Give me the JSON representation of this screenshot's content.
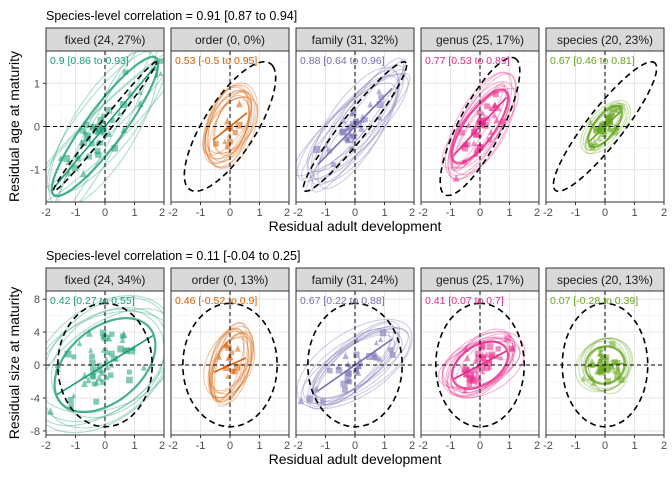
{
  "figure": {
    "x_label": "Residual adult development",
    "colors": {
      "fixed": "#1b9e77",
      "order": "#d95f02",
      "family": "#7570b3",
      "genus": "#e7298a",
      "species": "#66a61e"
    }
  },
  "chart_data": [
    {
      "type": "scatter",
      "title": "Species-level correlation = 0.91 [0.87 to 0.94]",
      "ylabel": "Residual age at maturity",
      "xlabel": "Residual adult development",
      "xlim": [
        -2,
        2
      ],
      "ylim": [
        -1.75,
        1.75
      ],
      "x_ticks": [
        -2,
        -1,
        0,
        1,
        2
      ],
      "x_tick_labels": [
        "-2",
        "-1",
        "0",
        "1",
        "2"
      ],
      "y_ticks": [
        -1,
        0,
        1
      ],
      "y_tick_labels": [
        "-1",
        "0",
        "1"
      ],
      "grid": true,
      "panels": [
        {
          "key": "fixed",
          "strip": "fixed (24, 27%)",
          "estimate": "0.9 [0.86 to 0.93]",
          "r": 0.9,
          "slope": 0.82,
          "spread_x": 0.95,
          "spread_y": 0.85,
          "outer": [
            1.75,
            1.5,
            0.99
          ],
          "ellipse_count": 6,
          "n_points": 50
        },
        {
          "key": "order",
          "strip": "order (0, 0%)",
          "estimate": "0.53 [-0.5 to 0.95]",
          "r": 0.53,
          "slope": 0.55,
          "spread_x": 0.32,
          "spread_y": 0.35,
          "outer": [
            1.55,
            1.5,
            0.75
          ],
          "ellipse_count": 12,
          "n_points": 12
        },
        {
          "key": "family",
          "strip": "family (31, 32%)",
          "estimate": "0.88 [0.64 to 0.96]",
          "r": 0.88,
          "slope": 0.7,
          "spread_x": 0.7,
          "spread_y": 0.55,
          "outer": [
            1.75,
            1.5,
            0.95
          ],
          "ellipse_count": 10,
          "n_points": 35
        },
        {
          "key": "genus",
          "strip": "genus (25, 17%)",
          "estimate": "0.77 [0.53 to 0.89]",
          "r": 0.77,
          "slope": 0.75,
          "spread_x": 0.5,
          "spread_y": 0.45,
          "outer": [
            1.35,
            1.6,
            0.8
          ],
          "ellipse_count": 10,
          "n_points": 45
        },
        {
          "key": "species",
          "strip": "species (20, 23%)",
          "estimate": "0.67 [0.46 to 0.81]",
          "r": 0.67,
          "slope": 0.65,
          "spread_x": 0.3,
          "spread_y": 0.25,
          "outer": [
            1.75,
            1.5,
            0.9
          ],
          "ellipse_count": 6,
          "n_points": 40
        }
      ]
    },
    {
      "type": "scatter",
      "title": "Species-level correlation = 0.11 [-0.04 to 0.25]",
      "ylabel": "Residual size at maturity",
      "xlabel": "Residual adult development",
      "xlim": [
        -2,
        2
      ],
      "ylim": [
        -8.5,
        9
      ],
      "x_ticks": [
        -2,
        -1,
        0,
        1,
        2
      ],
      "x_tick_labels": [
        "-2",
        "-1",
        "0",
        "1",
        "2"
      ],
      "y_ticks": [
        -8,
        -4,
        0,
        4,
        8
      ],
      "y_tick_labels": [
        "-8",
        "-4",
        "0",
        "4",
        "8"
      ],
      "grid": true,
      "panels": [
        {
          "key": "fixed",
          "strip": "fixed (24, 34%)",
          "estimate": "0.42 [0.27 to 0.55]",
          "r": 0.42,
          "slope": 2.2,
          "spread_x": 0.9,
          "spread_y": 3.0,
          "outer": [
            1.6,
            7.5,
            0.0
          ],
          "ellipse_count": 6,
          "n_points": 55
        },
        {
          "key": "order",
          "strip": "order (0, 13%)",
          "estimate": "0.46 [-0.52 to 0.9]",
          "r": 0.46,
          "slope": 1.6,
          "spread_x": 0.3,
          "spread_y": 1.8,
          "outer": [
            1.6,
            7.5,
            0.0
          ],
          "ellipse_count": 12,
          "n_points": 12
        },
        {
          "key": "family",
          "strip": "family (31, 24%)",
          "estimate": "0.67 [0.22 to 0.88]",
          "r": 0.67,
          "slope": 2.5,
          "spread_x": 0.7,
          "spread_y": 2.0,
          "outer": [
            1.6,
            7.5,
            0.0
          ],
          "ellipse_count": 10,
          "n_points": 35
        },
        {
          "key": "genus",
          "strip": "genus (25, 17%)",
          "estimate": "0.41 [0.07 to 0.7]",
          "r": 0.41,
          "slope": 1.9,
          "spread_x": 0.5,
          "spread_y": 1.5,
          "outer": [
            1.5,
            7.5,
            0.0
          ],
          "ellipse_count": 10,
          "n_points": 45
        },
        {
          "key": "species",
          "strip": "species (20, 13%)",
          "estimate": "0.07 [-0.28 to 0.39]",
          "r": 0.07,
          "slope": 0.3,
          "spread_x": 0.35,
          "spread_y": 1.2,
          "outer": [
            1.45,
            7.5,
            0.0
          ],
          "ellipse_count": 6,
          "n_points": 40
        }
      ]
    }
  ]
}
